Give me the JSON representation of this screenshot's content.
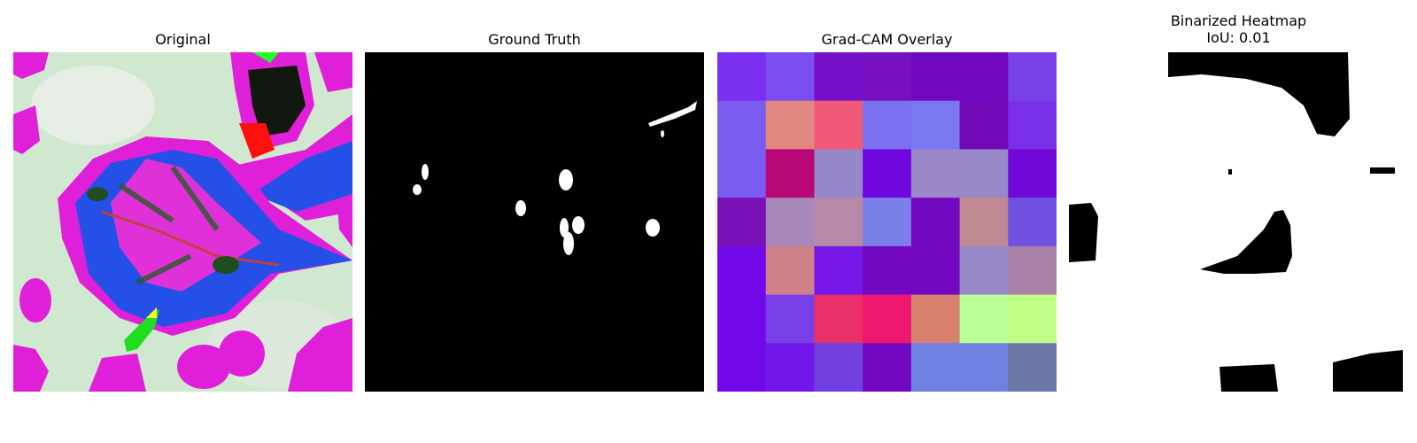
{
  "figure": {
    "panels": [
      {
        "id": "original",
        "title": "Original"
      },
      {
        "id": "ground_truth",
        "title": "Ground Truth"
      },
      {
        "id": "gradcam",
        "title": "Grad-CAM Overlay"
      },
      {
        "id": "binarized",
        "title": "Binarized Heatmap",
        "subtitle": "IoU: 0.01"
      }
    ],
    "gradcam_grid_colors": [
      [
        "#7b2ff0",
        "#7a4ef0",
        "#7610c8",
        "#7610c0",
        "#7008c0",
        "#7208c0",
        "#7a40e8"
      ],
      [
        "#7b5cf0",
        "#e08880",
        "#f05a78",
        "#7a70f0",
        "#7a78f0",
        "#7208b8",
        "#7a30e8"
      ],
      [
        "#7b5cf0",
        "#b80878",
        "#9688c8",
        "#7208e0",
        "#9a88c8",
        "#9888c8",
        "#7008d8"
      ],
      [
        "#7a10b8",
        "#a888b8",
        "#b888a8",
        "#7a80e8",
        "#7208c0",
        "#c08890",
        "#7050e0"
      ],
      [
        "#7208e8",
        "#d08088",
        "#7818e8",
        "#7208c0",
        "#7208c0",
        "#9888c8",
        "#a880a8"
      ],
      [
        "#7208e8",
        "#7a40e8",
        "#e83068",
        "#ee1870",
        "#d88070",
        "#b8ff98",
        "#c0ff88"
      ],
      [
        "#7208e8",
        "#7218e8",
        "#7040e0",
        "#7208c0",
        "#7080e0",
        "#7080e0",
        "#6c78a8"
      ]
    ],
    "colors": {
      "leaf_blue": "#2450e8",
      "magenta": "#e020d8",
      "background_green": "#cfe8cf",
      "mask_black": "#000000",
      "mask_white": "#ffffff"
    }
  }
}
